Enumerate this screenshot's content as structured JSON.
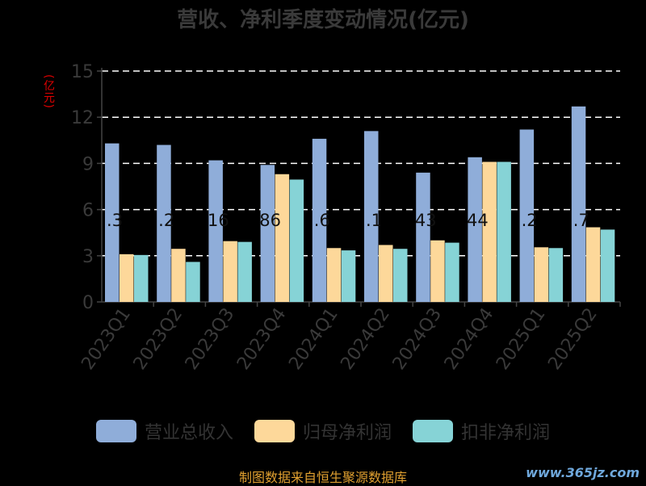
{
  "chart_data": {
    "type": "bar",
    "title": "营收、净利季度变动情况(亿元)",
    "ylabel": "(亿元)",
    "ylim": [
      0,
      15
    ],
    "yticks": [
      0,
      3,
      6,
      9,
      12,
      15
    ],
    "grid": true,
    "legend_position": "bottom",
    "categories": [
      "2023Q1",
      "2023Q2",
      "2023Q3",
      "2023Q4",
      "2024Q1",
      "2024Q2",
      "2024Q3",
      "2024Q4",
      "2025Q1",
      "2025Q2"
    ],
    "series": [
      {
        "name": "营业总收入",
        "color": "#8fadd9",
        "values": [
          10.3,
          10.2,
          9.2,
          8.9,
          10.6,
          11.1,
          8.4,
          9.4,
          11.2,
          12.7
        ]
      },
      {
        "name": "归母净利润",
        "color": "#fdd89a",
        "values": [
          3.1,
          3.45,
          3.95,
          8.3,
          3.5,
          3.7,
          4.0,
          9.1,
          3.55,
          4.85
        ]
      },
      {
        "name": "扣非净利润",
        "color": "#86d3d6",
        "values": [
          3.05,
          2.6,
          3.9,
          7.95,
          3.35,
          3.45,
          3.85,
          9.1,
          3.5,
          4.7
        ]
      }
    ],
    "annotations": [
      ".3",
      ".2",
      "16",
      "86",
      ".6",
      ".1",
      "43",
      "44",
      ".2",
      ".7"
    ]
  },
  "source_text": "制图数据来自恒生聚源数据库",
  "watermark_text": "www.365jz.com"
}
